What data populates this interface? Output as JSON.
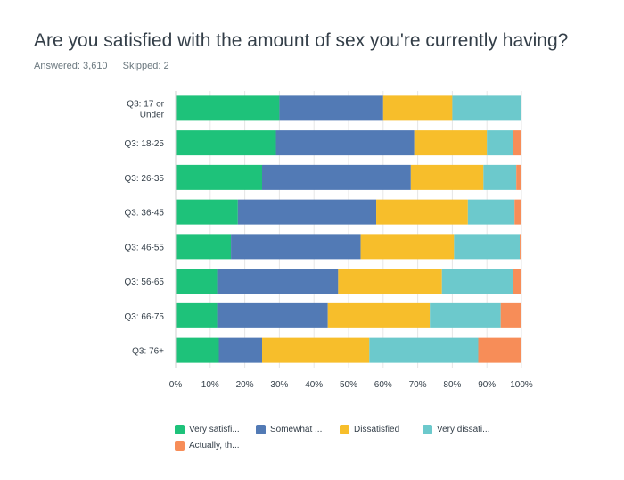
{
  "question": {
    "title": "Are you satisfied with the amount of sex you're currently having?",
    "answered_label": "Answered: 3,610",
    "skipped_label": "Skipped: 2"
  },
  "colors": {
    "very_satisfied": "#1ec27a",
    "somewhat": "#527ab5",
    "dissatisfied": "#f7be2b",
    "very_dissatisfied": "#6cc9cc",
    "actually": "#f78d58"
  },
  "chart_data": {
    "type": "bar",
    "orientation": "horizontal",
    "stacked": true,
    "categories": [
      "Q3: 17 or Under",
      "Q3: 18-25",
      "Q3: 26-35",
      "Q3: 36-45",
      "Q3: 46-55",
      "Q3: 56-65",
      "Q3: 66-75",
      "Q3: 76+"
    ],
    "series": [
      {
        "name": "Very satisfi...",
        "color": "#1ec27a",
        "values": [
          30,
          29,
          25,
          18,
          16,
          12,
          12,
          12.5
        ]
      },
      {
        "name": "Somewhat ...",
        "color": "#527ab5",
        "values": [
          30,
          40,
          43,
          40,
          37.5,
          35,
          32,
          12.5
        ]
      },
      {
        "name": "Dissatisfied",
        "color": "#f7be2b",
        "values": [
          20,
          21,
          21,
          26.5,
          27,
          30,
          29.5,
          31
        ]
      },
      {
        "name": "Very dissati...",
        "color": "#6cc9cc",
        "values": [
          20,
          7.5,
          9.5,
          13.5,
          19,
          20.5,
          20.5,
          31.5
        ]
      },
      {
        "name": "Actually, th...",
        "color": "#f78d58",
        "values": [
          0,
          2.5,
          1.5,
          2,
          0.5,
          2.5,
          6,
          12.5
        ]
      }
    ],
    "x_ticks": [
      "0%",
      "10%",
      "20%",
      "30%",
      "40%",
      "50%",
      "60%",
      "70%",
      "80%",
      "90%",
      "100%"
    ],
    "xlim": [
      0,
      100
    ],
    "grid": true,
    "legend_position": "bottom"
  }
}
